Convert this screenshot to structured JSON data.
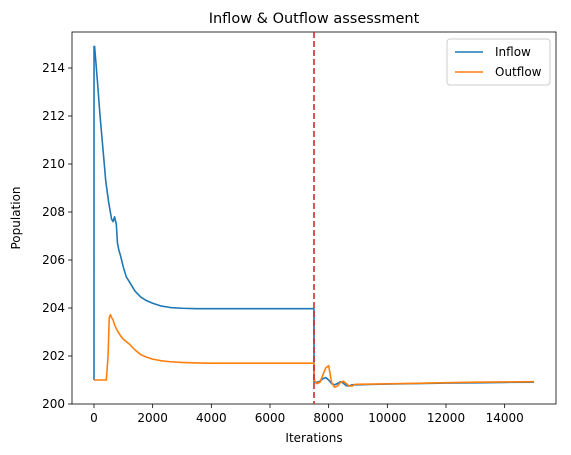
{
  "chart_data": {
    "type": "line",
    "title": "Inflow & Outflow assessment",
    "xlabel": "Iterations",
    "ylabel": "Population",
    "xlim": [
      -750,
      15750
    ],
    "ylim": [
      200.0,
      215.5
    ],
    "xticks": [
      0,
      2000,
      4000,
      6000,
      8000,
      10000,
      12000,
      14000
    ],
    "yticks": [
      200,
      202,
      204,
      206,
      208,
      210,
      212,
      214
    ],
    "grid": false,
    "legend_position": "top-right",
    "vline": {
      "x": 7500,
      "color": "#d62728",
      "style": "dashed"
    },
    "series": [
      {
        "name": "Inflow",
        "color": "#1f77b4",
        "x": [
          0,
          1,
          20,
          60,
          120,
          200,
          300,
          400,
          500,
          600,
          650,
          700,
          760,
          800,
          850,
          900,
          1000,
          1100,
          1200,
          1400,
          1600,
          1800,
          2000,
          2300,
          2600,
          3000,
          3500,
          4000,
          5000,
          6000,
          7000,
          7499,
          7500,
          7600,
          7700,
          7800,
          7900,
          8000,
          8100,
          8200,
          8300,
          8400,
          8500,
          8600,
          8700,
          8800,
          8900,
          9000,
          9500,
          10000,
          11000,
          12000,
          13000,
          14000,
          15000
        ],
        "y": [
          201.0,
          214.9,
          214.9,
          214.3,
          213.4,
          212.1,
          210.7,
          209.3,
          208.4,
          207.7,
          207.6,
          207.8,
          207.5,
          206.7,
          206.4,
          206.2,
          205.7,
          205.3,
          205.1,
          204.7,
          204.45,
          204.3,
          204.2,
          204.08,
          204.02,
          203.99,
          203.97,
          203.97,
          203.97,
          203.97,
          203.97,
          203.97,
          200.9,
          200.9,
          200.95,
          201.05,
          201.1,
          201.0,
          200.85,
          200.8,
          200.85,
          200.93,
          200.87,
          200.76,
          200.75,
          200.8,
          200.8,
          200.8,
          200.82,
          200.83,
          200.85,
          200.87,
          200.88,
          200.9,
          200.91
        ]
      },
      {
        "name": "Outflow",
        "color": "#ff7f0e",
        "x": [
          0,
          50,
          200,
          350,
          420,
          480,
          520,
          560,
          600,
          650,
          700,
          800,
          900,
          1000,
          1100,
          1200,
          1400,
          1600,
          1800,
          2000,
          2300,
          2600,
          3000,
          3500,
          4000,
          5000,
          6000,
          7000,
          7499,
          7500,
          7600,
          7700,
          7800,
          7900,
          8000,
          8100,
          8200,
          8300,
          8400,
          8500,
          8600,
          8700,
          8800,
          8900,
          9000,
          9500,
          10000,
          11000,
          12000,
          13000,
          14000,
          15000
        ],
        "y": [
          201.0,
          201.0,
          201.0,
          201.0,
          201.0,
          202.0,
          203.6,
          203.72,
          203.6,
          203.5,
          203.3,
          203.05,
          202.85,
          202.7,
          202.6,
          202.5,
          202.25,
          202.05,
          201.95,
          201.87,
          201.8,
          201.76,
          201.73,
          201.71,
          201.7,
          201.7,
          201.7,
          201.7,
          201.7,
          201.0,
          200.85,
          200.9,
          201.2,
          201.5,
          201.6,
          200.9,
          200.7,
          200.75,
          200.9,
          200.95,
          200.85,
          200.75,
          200.75,
          200.82,
          200.82,
          200.83,
          200.84,
          200.86,
          200.89,
          200.91,
          200.92,
          200.93
        ]
      }
    ]
  }
}
